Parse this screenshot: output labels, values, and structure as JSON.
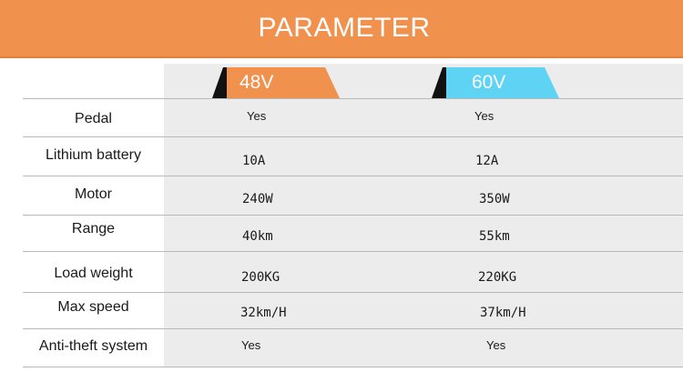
{
  "header": {
    "title": "PARAMETER"
  },
  "columns": [
    {
      "label": "48V",
      "color": "#f0924e"
    },
    {
      "label": "60V",
      "color": "#5fd3f3"
    }
  ],
  "rows": [
    {
      "label": "Pedal",
      "v48": "Yes",
      "v60": "Yes"
    },
    {
      "label": "Lithium battery",
      "v48": "10A",
      "v60": "12A"
    },
    {
      "label": "Motor",
      "v48": "240W",
      "v60": "350W"
    },
    {
      "label": "Range",
      "v48": "40km",
      "v60": "55km"
    },
    {
      "label": "Load weight",
      "v48": "200KG",
      "v60": "220KG"
    },
    {
      "label": "Max speed",
      "v48": "32km/H",
      "v60": "37km/H"
    },
    {
      "label": "Anti-theft system",
      "v48": "Yes",
      "v60": "Yes"
    }
  ]
}
